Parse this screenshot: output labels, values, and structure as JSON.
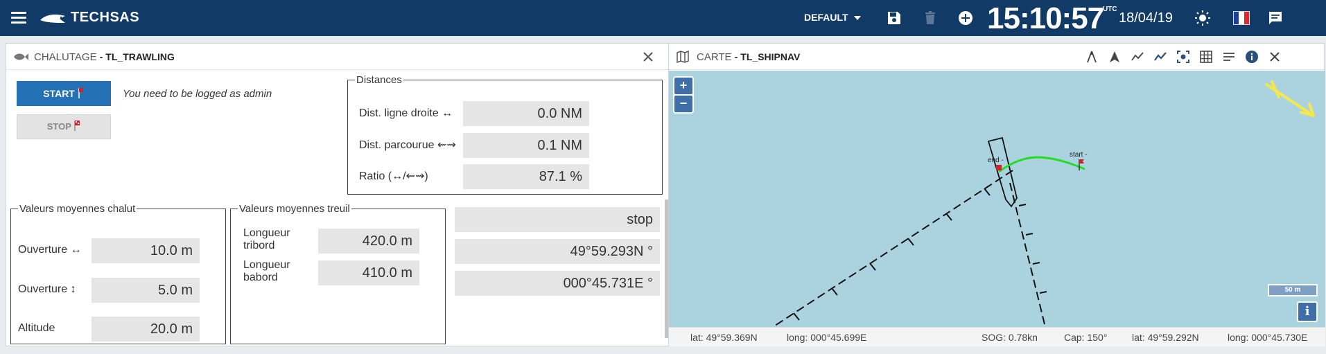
{
  "topbar": {
    "brand": "TECHSAS",
    "profile": "DEFAULT",
    "clock": "15:10:57",
    "utc": "UTC",
    "date": "18/04/19"
  },
  "trawling": {
    "category": "CHALUTAGE",
    "name": "- TL_TRAWLING",
    "start_label": "START",
    "stop_label": "STOP",
    "admin_msg": "You need to be logged as admin",
    "distances": {
      "legend": "Distances",
      "rows": [
        {
          "label": "Dist. ligne droite ↔",
          "value": "0.0 NM"
        },
        {
          "label": "Dist. parcourue ⇜⇝",
          "value": "0.1 NM"
        },
        {
          "label": "Ratio (↔/⇜⇝)",
          "value": "87.1 %"
        }
      ]
    },
    "chalut": {
      "legend": "Valeurs moyennes chalut",
      "rows": [
        {
          "label": "Ouverture ↔",
          "value": "10.0 m"
        },
        {
          "label": "Ouverture ↕",
          "value": "5.0 m"
        },
        {
          "label": "Altitude",
          "value": "20.0 m"
        }
      ]
    },
    "treuil": {
      "legend": "Valeurs moyennes treuil",
      "rows": [
        {
          "label": "Longueur tribord",
          "value": "420.0 m"
        },
        {
          "label": "Longueur babord",
          "value": "410.0 m"
        }
      ]
    },
    "status": [
      "stop",
      "49°59.293N °",
      "000°45.731E °"
    ]
  },
  "map": {
    "category": "CARTE",
    "name": "- TL_SHIPNAV",
    "zoom_in": "+",
    "zoom_out": "−",
    "scale_label": "50 m",
    "info_label": "i",
    "marker_end": "end -",
    "marker_start": "start -",
    "footer": {
      "cursor_lat": "lat: 49°59.369N",
      "cursor_long": "long: 000°45.699E",
      "sog": "SOG: 0.78kn",
      "cap": "Cap: 150°",
      "ship_lat": "lat: 49°59.292N",
      "ship_long": "long: 000°45.730E"
    }
  },
  "colors": {
    "topbar": "#123a66",
    "start_button": "#2472b5",
    "sea": "#aad3df",
    "track": "#22dd22",
    "wind_arrow": "#f5e84a"
  },
  "icons": [
    "menu-icon",
    "techsas-logo",
    "save-icon",
    "trash-icon",
    "add-circle-icon",
    "brightness-icon",
    "flag-fr-icon",
    "chat-icon",
    "fish-icon",
    "close-icon",
    "map-icon",
    "info-icon",
    "grid-icon",
    "list-icon",
    "target-icon",
    "track-icon",
    "navigation-icon",
    "compass-icon"
  ]
}
